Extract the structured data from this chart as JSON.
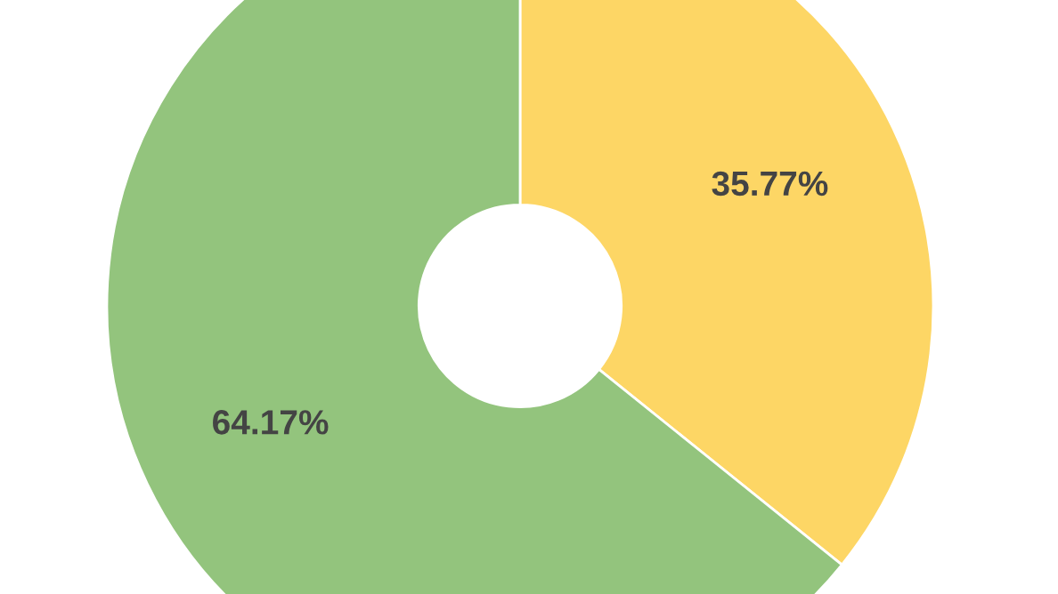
{
  "chart_data": {
    "type": "donut",
    "categories": [
      null,
      null
    ],
    "values": [
      35.77,
      64.17
    ],
    "colors": [
      "#fdd665",
      "#93c47d"
    ],
    "value_labels": [
      "35.77%",
      "64.17%"
    ]
  }
}
